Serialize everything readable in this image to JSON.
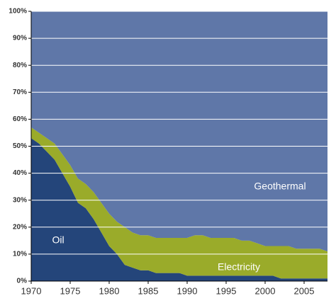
{
  "chart_data": {
    "type": "stacked_area",
    "x": [
      1970,
      1971,
      1972,
      1973,
      1974,
      1975,
      1976,
      1977,
      1978,
      1979,
      1980,
      1981,
      1982,
      1983,
      1984,
      1985,
      1986,
      1987,
      1988,
      1989,
      1990,
      1991,
      1992,
      1993,
      1994,
      1995,
      1996,
      1997,
      1998,
      1999,
      2000,
      2001,
      2002,
      2003,
      2004,
      2005,
      2006,
      2007,
      2008
    ],
    "series": [
      {
        "name": "Oil",
        "color": "#24457a",
        "values": [
          53,
          51,
          48,
          45,
          40,
          35,
          29,
          27,
          23,
          18,
          13,
          10,
          6,
          5,
          4,
          4,
          3,
          3,
          3,
          3,
          2,
          2,
          2,
          2,
          2,
          2,
          2,
          2,
          2,
          2,
          2,
          2,
          1,
          1,
          1,
          1,
          1,
          1,
          1
        ]
      },
      {
        "name": "Electricity",
        "color": "#9aab2a",
        "values": [
          4,
          4,
          5,
          6,
          7,
          8,
          9,
          9,
          10,
          11,
          12,
          12,
          14,
          13,
          13,
          13,
          13,
          13,
          13,
          13,
          14,
          15,
          15,
          14,
          14,
          14,
          14,
          13,
          13,
          12,
          11,
          11,
          12,
          12,
          11,
          11,
          11,
          11,
          10
        ]
      },
      {
        "name": "Geothermal",
        "color": "#5f77a8",
        "values": [
          43,
          45,
          47,
          49,
          53,
          57,
          62,
          64,
          67,
          71,
          75,
          78,
          80,
          82,
          83,
          83,
          84,
          84,
          84,
          84,
          84,
          83,
          83,
          84,
          84,
          84,
          84,
          85,
          85,
          86,
          87,
          87,
          87,
          87,
          88,
          88,
          88,
          88,
          89
        ]
      }
    ],
    "xlim": [
      1970,
      2008
    ],
    "xticks": [
      1970,
      1975,
      1980,
      1985,
      1990,
      1995,
      2000,
      2005
    ],
    "ylim": [
      0,
      100
    ],
    "yticks": [
      {
        "value": 0,
        "label": "0%"
      },
      {
        "value": 10,
        "label": "10%"
      },
      {
        "value": 20,
        "label": "20%"
      },
      {
        "value": 30,
        "label": "30%"
      },
      {
        "value": 40,
        "label": "40%"
      },
      {
        "value": 50,
        "label": "50%"
      },
      {
        "value": 60,
        "label": "60%"
      },
      {
        "value": 70,
        "label": "70%"
      },
      {
        "value": 80,
        "label": "80%"
      },
      {
        "value": 90,
        "label": "90%"
      },
      {
        "value": 100,
        "label": "100%"
      }
    ],
    "grid": true
  }
}
